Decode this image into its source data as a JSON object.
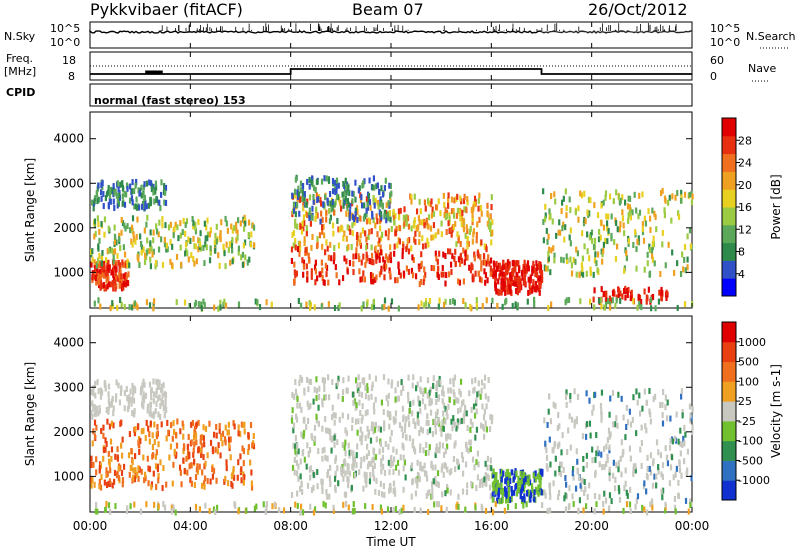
{
  "header": {
    "station": "Pykkvibaer (fitACF)",
    "beam": "Beam 07",
    "date": "26/Oct/2012"
  },
  "panels": {
    "nsky": {
      "label": "N.Sky",
      "left_ticks": [
        "10^5",
        "10^0"
      ],
      "right_ticks": [
        "10^5",
        "10^0"
      ],
      "right_label": "N.Search"
    },
    "freq": {
      "label_top": "Freq.",
      "label_unit": "[MHz]",
      "left_ticks": [
        "18",
        "8"
      ],
      "right_ticks": [
        "60",
        "0"
      ],
      "right_label": "Nave"
    },
    "cpid": {
      "label": "CPID",
      "text": "normal (fast stereo) 153"
    }
  },
  "chart_data": [
    {
      "type": "heatmap",
      "ylabel": "Slant Range [km]",
      "yticks": [
        "4000",
        "3000",
        "2000",
        "1000"
      ],
      "y_values": [
        4000,
        3000,
        2000,
        1000
      ],
      "ylim": [
        200,
        4600
      ],
      "xlim_hours": [
        0,
        24
      ],
      "colorbar": {
        "label": "Power [dB]",
        "ticks": [
          "28",
          "24",
          "20",
          "16",
          "12",
          "8",
          "4"
        ],
        "values": [
          28,
          24,
          20,
          16,
          12,
          8,
          4
        ],
        "range": [
          0,
          32
        ],
        "colors": [
          "#0000ff",
          "#3050c8",
          "#2e8a4a",
          "#5ca85a",
          "#9acb42",
          "#e8d020",
          "#f0a020",
          "#f07020",
          "#e83010",
          "#e00000"
        ]
      }
    },
    {
      "type": "heatmap",
      "ylabel": "Slant Range [km]",
      "yticks": [
        "4000",
        "3000",
        "2000",
        "1000"
      ],
      "y_values": [
        4000,
        3000,
        2000,
        1000
      ],
      "ylim": [
        200,
        4600
      ],
      "xlim_hours": [
        0,
        24
      ],
      "colorbar": {
        "label": "Velocity [m s-1]",
        "ticks": [
          "1000",
          "500",
          "100",
          "25",
          "-25",
          "-100",
          "-500",
          "-1000"
        ],
        "colors": [
          "#1030d0",
          "#3070c0",
          "#309050",
          "#70c030",
          "#c8c8c0",
          "#f0a020",
          "#f07020",
          "#e84010",
          "#e00000"
        ]
      }
    }
  ],
  "xaxis": {
    "ticks": [
      "00:00",
      "04:00",
      "08:00",
      "12:00",
      "16:00",
      "20:00",
      "00:00"
    ],
    "hours": [
      0,
      4,
      8,
      12,
      16,
      20,
      24
    ],
    "label": "Time UT"
  }
}
